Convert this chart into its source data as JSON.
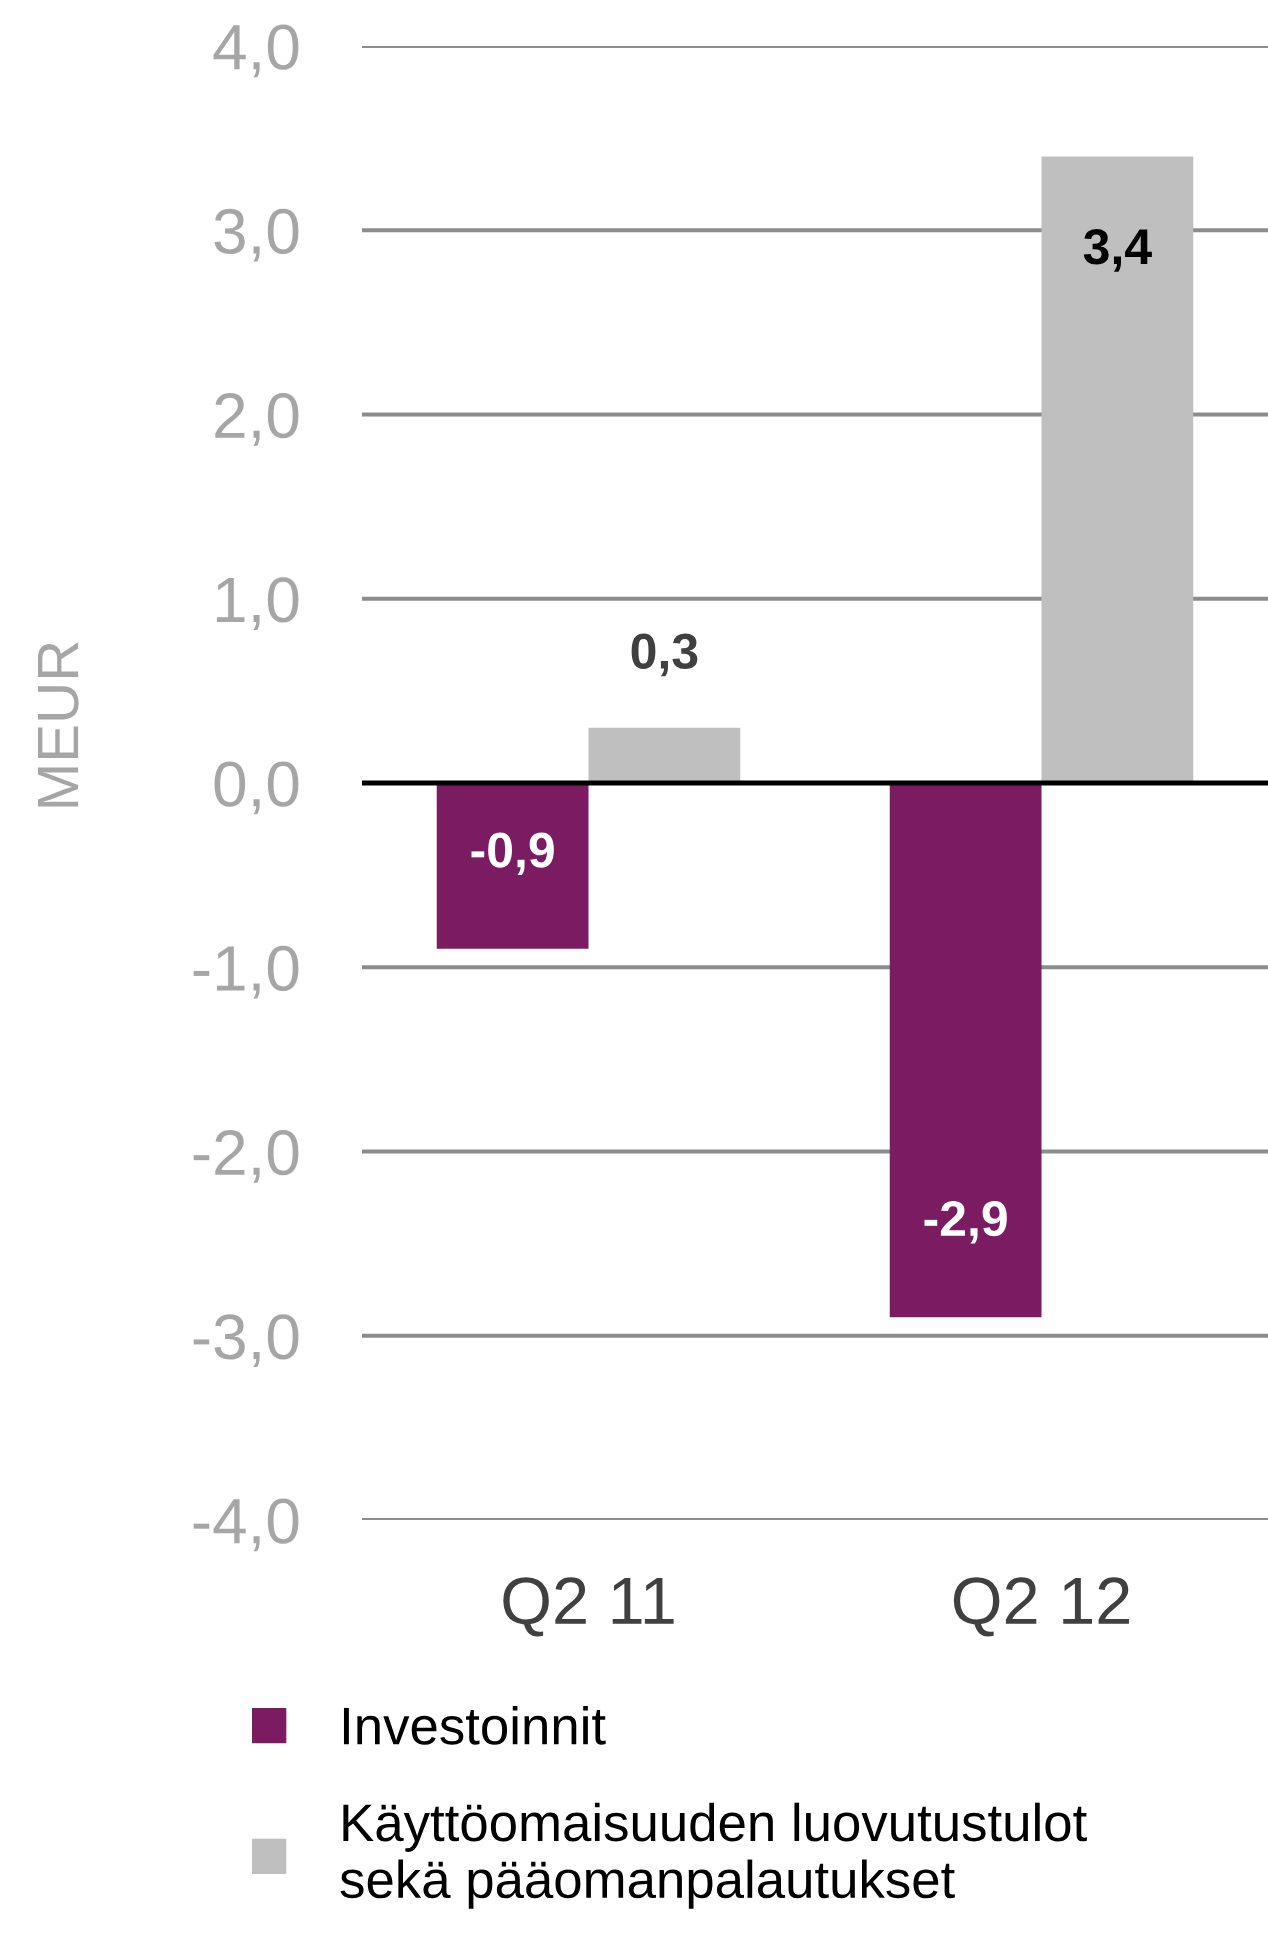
{
  "chart_data": {
    "type": "bar",
    "ylabel": "MEUR",
    "categories": [
      "Q2 11",
      "Q2 12"
    ],
    "series": [
      {
        "name": "Investoinnit",
        "color": "#7b1c62",
        "values": [
          -0.9,
          -2.9
        ],
        "value_labels": [
          "-0,9",
          "-2,9"
        ]
      },
      {
        "name": "Käyttöomaisuuden luovutustulot\nsekä pääomanpalautukset",
        "color": "#bfbfbf",
        "values": [
          0.3,
          3.4
        ],
        "value_labels": [
          "0,3",
          "3,4"
        ]
      }
    ],
    "ylim": [
      -4,
      4
    ],
    "yticks": [
      {
        "value": -4,
        "label": "-4,0"
      },
      {
        "value": -3,
        "label": "-3,0"
      },
      {
        "value": -2,
        "label": "-2,0"
      },
      {
        "value": -1,
        "label": "-1,0"
      },
      {
        "value": 0,
        "label": "0,0"
      },
      {
        "value": 1,
        "label": "1,0"
      },
      {
        "value": 2,
        "label": "2,0"
      },
      {
        "value": 3,
        "label": "3,0"
      },
      {
        "value": 4,
        "label": "4,0"
      }
    ],
    "grid": "y",
    "legend": "bottom",
    "ref_lines": [
      {
        "axis": "y",
        "value": 0,
        "color": "#000000"
      }
    ]
  }
}
